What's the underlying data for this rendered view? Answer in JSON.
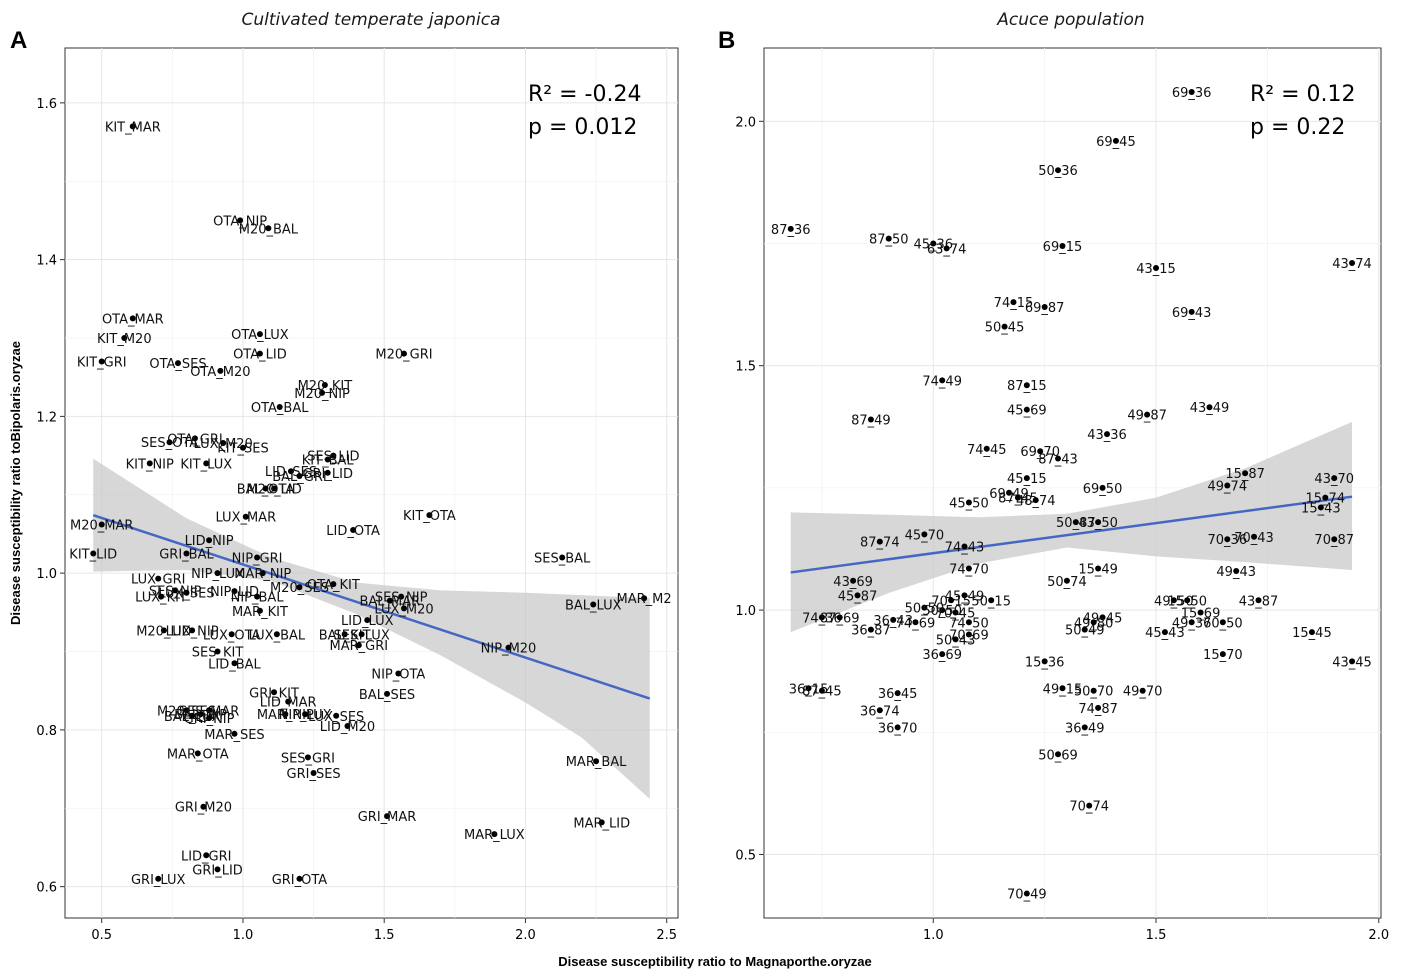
{
  "chart_data": [
    {
      "type": "scatter",
      "panel_letter": "A",
      "title": "Cultivated temperate japonica",
      "xlabel": "Disease susceptibility ratio to Magnaporthe.oryzae",
      "ylabel": "Disease susceptibility ratio toBipolaris.oryzae",
      "xlim": [
        0.37,
        2.54
      ],
      "ylim": [
        0.56,
        1.67
      ],
      "xticks": [
        "0.5",
        "1.0",
        "1.5",
        "2.0",
        "2.5"
      ],
      "xtick_values": [
        0.5,
        1.0,
        1.5,
        2.0,
        2.5
      ],
      "yticks": [
        "0.6",
        "0.8",
        "1.0",
        "1.2",
        "1.4",
        "1.6"
      ],
      "ytick_values": [
        0.6,
        0.8,
        1.0,
        1.2,
        1.4,
        1.6
      ],
      "grid": true,
      "stats": {
        "r2": "R² = -0.24",
        "p": "p   = 0.012"
      },
      "trend": {
        "x0": 0.47,
        "y0": 1.074,
        "x1": 2.44,
        "y1": 0.84
      },
      "band": {
        "x": [
          0.47,
          0.8,
          1.1,
          1.4,
          1.7,
          2.0,
          2.2,
          2.44
        ],
        "upper": [
          1.146,
          1.07,
          1.02,
          0.988,
          0.978,
          0.975,
          0.972,
          0.968
        ],
        "lower": [
          1.002,
          1.004,
          0.99,
          0.948,
          0.895,
          0.835,
          0.79,
          0.712
        ]
      },
      "points": [
        {
          "x": 0.61,
          "y": 1.57,
          "label": "KIT_MAR"
        },
        {
          "x": 0.99,
          "y": 1.45,
          "label": "OTA_NIP"
        },
        {
          "x": 1.09,
          "y": 1.44,
          "label": "M20_BAL"
        },
        {
          "x": 0.61,
          "y": 1.325,
          "label": "OTA_MAR"
        },
        {
          "x": 0.58,
          "y": 1.3,
          "label": "KIT_M20"
        },
        {
          "x": 1.06,
          "y": 1.305,
          "label": "OTA_LUX"
        },
        {
          "x": 1.06,
          "y": 1.28,
          "label": "OTA_LID"
        },
        {
          "x": 1.57,
          "y": 1.28,
          "label": "M20_GRI"
        },
        {
          "x": 0.5,
          "y": 1.27,
          "label": "KIT_GRI"
        },
        {
          "x": 0.77,
          "y": 1.268,
          "label": "OTA_SES"
        },
        {
          "x": 0.92,
          "y": 1.258,
          "label": "OTA_M20"
        },
        {
          "x": 1.29,
          "y": 1.24,
          "label": "M20_KIT"
        },
        {
          "x": 1.28,
          "y": 1.23,
          "label": "M20_NIP"
        },
        {
          "x": 1.13,
          "y": 1.212,
          "label": "OTA_BAL"
        },
        {
          "x": 0.83,
          "y": 1.172,
          "label": "OTA_GRI"
        },
        {
          "x": 0.74,
          "y": 1.167,
          "label": "SES_OTA"
        },
        {
          "x": 0.93,
          "y": 1.166,
          "label": "LUX_M20"
        },
        {
          "x": 1.0,
          "y": 1.16,
          "label": "KIT_SES"
        },
        {
          "x": 1.32,
          "y": 1.15,
          "label": "SES_LID"
        },
        {
          "x": 1.3,
          "y": 1.145,
          "label": "KIT_BAL"
        },
        {
          "x": 0.67,
          "y": 1.14,
          "label": "KIT_NIP"
        },
        {
          "x": 0.87,
          "y": 1.14,
          "label": "KIT_LUX"
        },
        {
          "x": 1.17,
          "y": 1.13,
          "label": "LID_SES"
        },
        {
          "x": 1.3,
          "y": 1.128,
          "label": "GRI_LID"
        },
        {
          "x": 1.2,
          "y": 1.124,
          "label": "BAL_GRI"
        },
        {
          "x": 1.08,
          "y": 1.108,
          "label": "BAL_OTA"
        },
        {
          "x": 1.11,
          "y": 1.108,
          "label": "M20_LID"
        },
        {
          "x": 1.66,
          "y": 1.074,
          "label": "KIT_OTA"
        },
        {
          "x": 1.01,
          "y": 1.072,
          "label": "LUX_MAR"
        },
        {
          "x": 0.5,
          "y": 1.062,
          "label": "M20_MAR"
        },
        {
          "x": 1.39,
          "y": 1.055,
          "label": "LID_OTA"
        },
        {
          "x": 0.88,
          "y": 1.042,
          "label": "LID_NIP"
        },
        {
          "x": 0.47,
          "y": 1.025,
          "label": "KIT_LID"
        },
        {
          "x": 0.8,
          "y": 1.025,
          "label": "GRI_BAL"
        },
        {
          "x": 2.13,
          "y": 1.02,
          "label": "SES_BAL"
        },
        {
          "x": 1.05,
          "y": 1.02,
          "label": "NIP_GRI"
        },
        {
          "x": 0.91,
          "y": 1.0,
          "label": "NIP_LUX"
        },
        {
          "x": 1.07,
          "y": 1.0,
          "label": "MAR_NIP"
        },
        {
          "x": 0.7,
          "y": 0.993,
          "label": "LUX_GRI"
        },
        {
          "x": 1.32,
          "y": 0.986,
          "label": "OTA_KIT"
        },
        {
          "x": 1.2,
          "y": 0.982,
          "label": "M20_SES"
        },
        {
          "x": 0.76,
          "y": 0.978,
          "label": "SES_NIP"
        },
        {
          "x": 0.97,
          "y": 0.977,
          "label": "NIP_LID"
        },
        {
          "x": 0.8,
          "y": 0.975,
          "label": "LUX_SES"
        },
        {
          "x": 0.71,
          "y": 0.97,
          "label": "LUX_KIT"
        },
        {
          "x": 1.05,
          "y": 0.97,
          "label": "NIP_BAL"
        },
        {
          "x": 1.56,
          "y": 0.97,
          "label": "SES_NIP"
        },
        {
          "x": 1.52,
          "y": 0.965,
          "label": "BAL_MAR"
        },
        {
          "x": 2.42,
          "y": 0.968,
          "label": "MAR_M2"
        },
        {
          "x": 2.24,
          "y": 0.96,
          "label": "BAL_LUX"
        },
        {
          "x": 1.57,
          "y": 0.955,
          "label": "LUX_M20"
        },
        {
          "x": 1.06,
          "y": 0.952,
          "label": "MAR_KIT"
        },
        {
          "x": 1.44,
          "y": 0.94,
          "label": "LID_LUX"
        },
        {
          "x": 0.72,
          "y": 0.927,
          "label": "M20_LID"
        },
        {
          "x": 0.82,
          "y": 0.927,
          "label": "LUX_NIP"
        },
        {
          "x": 0.96,
          "y": 0.922,
          "label": "LUX_OTA"
        },
        {
          "x": 1.12,
          "y": 0.922,
          "label": "LUX_BAL"
        },
        {
          "x": 1.36,
          "y": 0.922,
          "label": "BAL_KIT"
        },
        {
          "x": 1.42,
          "y": 0.922,
          "label": "SES_LUX"
        },
        {
          "x": 1.41,
          "y": 0.908,
          "label": "MAR_GRI"
        },
        {
          "x": 1.94,
          "y": 0.905,
          "label": "NIP_M20"
        },
        {
          "x": 0.91,
          "y": 0.9,
          "label": "SES_KIT"
        },
        {
          "x": 0.97,
          "y": 0.885,
          "label": "LID_BAL"
        },
        {
          "x": 1.55,
          "y": 0.872,
          "label": "NIP_OTA"
        },
        {
          "x": 1.11,
          "y": 0.848,
          "label": "GRI_KIT"
        },
        {
          "x": 1.51,
          "y": 0.846,
          "label": "BAL_SES"
        },
        {
          "x": 1.16,
          "y": 0.836,
          "label": "LID_MAR"
        },
        {
          "x": 0.8,
          "y": 0.825,
          "label": "M20_SES"
        },
        {
          "x": 0.88,
          "y": 0.825,
          "label": "SES_MAR"
        },
        {
          "x": 0.85,
          "y": 0.82,
          "label": "BAL_NIP"
        },
        {
          "x": 0.82,
          "y": 0.818,
          "label": "BAL_LUX"
        },
        {
          "x": 0.88,
          "y": 0.815,
          "label": "GRI_NIP"
        },
        {
          "x": 1.15,
          "y": 0.82,
          "label": "MAR_NIP"
        },
        {
          "x": 1.22,
          "y": 0.82,
          "label": "NIP_LUX"
        },
        {
          "x": 1.33,
          "y": 0.818,
          "label": "LUX_SES"
        },
        {
          "x": 1.37,
          "y": 0.805,
          "label": "LID_M20"
        },
        {
          "x": 0.97,
          "y": 0.795,
          "label": "MAR_SES"
        },
        {
          "x": 0.84,
          "y": 0.77,
          "label": "MAR_OTA"
        },
        {
          "x": 1.23,
          "y": 0.765,
          "label": "SES_GRI"
        },
        {
          "x": 1.25,
          "y": 0.745,
          "label": "GRI_SES"
        },
        {
          "x": 2.25,
          "y": 0.76,
          "label": "MAR_BAL"
        },
        {
          "x": 0.86,
          "y": 0.702,
          "label": "GRI_M20"
        },
        {
          "x": 1.51,
          "y": 0.69,
          "label": "GRI_MAR"
        },
        {
          "x": 2.27,
          "y": 0.682,
          "label": "MAR_LID"
        },
        {
          "x": 1.89,
          "y": 0.667,
          "label": "MAR_LUX"
        },
        {
          "x": 0.87,
          "y": 0.64,
          "label": "LID_GRI"
        },
        {
          "x": 0.91,
          "y": 0.622,
          "label": "GRI_LID"
        },
        {
          "x": 0.7,
          "y": 0.61,
          "label": "GRI_LUX"
        },
        {
          "x": 1.2,
          "y": 0.61,
          "label": "GRI_OTA"
        }
      ]
    },
    {
      "type": "scatter",
      "panel_letter": "B",
      "title": "Acuce population",
      "xlabel": "Disease susceptibility ratio to Magnaporthe.oryzae",
      "ylabel": "",
      "xlim": [
        0.62,
        2.005
      ],
      "ylim": [
        0.37,
        2.15
      ],
      "xticks": [
        "1.0",
        "1.5",
        "2.0"
      ],
      "xtick_values": [
        1.0,
        1.5,
        2.0
      ],
      "yticks": [
        "0.5",
        "1.0",
        "1.5",
        "2.0"
      ],
      "ytick_values": [
        0.5,
        1.0,
        1.5,
        2.0
      ],
      "grid": true,
      "stats": {
        "r2": "R² = 0.12",
        "p": "p   = 0.22"
      },
      "trend": {
        "x0": 0.68,
        "y0": 1.077,
        "x1": 1.94,
        "y1": 1.232
      },
      "band": {
        "x": [
          0.68,
          0.9,
          1.1,
          1.3,
          1.5,
          1.7,
          1.94
        ],
        "upper": [
          1.2,
          1.195,
          1.19,
          1.197,
          1.23,
          1.29,
          1.385
        ],
        "lower": [
          0.955,
          1.035,
          1.095,
          1.128,
          1.11,
          1.098,
          1.082
        ]
      },
      "points": [
        {
          "x": 1.58,
          "y": 2.06,
          "label": "69_36"
        },
        {
          "x": 1.41,
          "y": 1.96,
          "label": "69_45"
        },
        {
          "x": 1.28,
          "y": 1.9,
          "label": "50_36"
        },
        {
          "x": 0.68,
          "y": 1.78,
          "label": "87_36"
        },
        {
          "x": 0.9,
          "y": 1.76,
          "label": "87_50"
        },
        {
          "x": 1.0,
          "y": 1.75,
          "label": "45_36"
        },
        {
          "x": 1.03,
          "y": 1.74,
          "label": "63_74"
        },
        {
          "x": 1.29,
          "y": 1.745,
          "label": "69_15"
        },
        {
          "x": 1.94,
          "y": 1.71,
          "label": "43_74"
        },
        {
          "x": 1.5,
          "y": 1.7,
          "label": "43_15"
        },
        {
          "x": 1.18,
          "y": 1.63,
          "label": "74_15"
        },
        {
          "x": 1.25,
          "y": 1.62,
          "label": "69_87"
        },
        {
          "x": 1.58,
          "y": 1.61,
          "label": "69_43"
        },
        {
          "x": 1.16,
          "y": 1.58,
          "label": "50_45"
        },
        {
          "x": 1.02,
          "y": 1.47,
          "label": "74_49"
        },
        {
          "x": 1.21,
          "y": 1.46,
          "label": "87_15"
        },
        {
          "x": 0.86,
          "y": 1.39,
          "label": "87_49"
        },
        {
          "x": 1.21,
          "y": 1.41,
          "label": "45_69"
        },
        {
          "x": 1.48,
          "y": 1.4,
          "label": "49_87"
        },
        {
          "x": 1.62,
          "y": 1.415,
          "label": "43_49"
        },
        {
          "x": 1.39,
          "y": 1.36,
          "label": "43_36"
        },
        {
          "x": 1.12,
          "y": 1.33,
          "label": "74_45"
        },
        {
          "x": 1.24,
          "y": 1.325,
          "label": "69_70"
        },
        {
          "x": 1.28,
          "y": 1.31,
          "label": "87_43"
        },
        {
          "x": 1.7,
          "y": 1.28,
          "label": "15_87"
        },
        {
          "x": 1.21,
          "y": 1.27,
          "label": "45_15"
        },
        {
          "x": 1.9,
          "y": 1.27,
          "label": "43_70"
        },
        {
          "x": 1.66,
          "y": 1.255,
          "label": "49_74"
        },
        {
          "x": 1.38,
          "y": 1.25,
          "label": "69_50"
        },
        {
          "x": 1.17,
          "y": 1.24,
          "label": "69_49"
        },
        {
          "x": 1.19,
          "y": 1.23,
          "label": "87_45"
        },
        {
          "x": 1.23,
          "y": 1.225,
          "label": "48_74"
        },
        {
          "x": 1.08,
          "y": 1.22,
          "label": "45_50"
        },
        {
          "x": 1.88,
          "y": 1.23,
          "label": "15_74"
        },
        {
          "x": 1.87,
          "y": 1.21,
          "label": "15_43"
        },
        {
          "x": 1.32,
          "y": 1.18,
          "label": "50_87"
        },
        {
          "x": 1.37,
          "y": 1.18,
          "label": "43_50"
        },
        {
          "x": 0.88,
          "y": 1.14,
          "label": "87_74"
        },
        {
          "x": 0.98,
          "y": 1.155,
          "label": "45_70"
        },
        {
          "x": 1.72,
          "y": 1.15,
          "label": "70_43"
        },
        {
          "x": 1.66,
          "y": 1.145,
          "label": "70_36"
        },
        {
          "x": 1.9,
          "y": 1.145,
          "label": "70_87"
        },
        {
          "x": 1.07,
          "y": 1.13,
          "label": "74_43"
        },
        {
          "x": 1.08,
          "y": 1.085,
          "label": "74_70"
        },
        {
          "x": 1.37,
          "y": 1.085,
          "label": "15_49"
        },
        {
          "x": 1.68,
          "y": 1.08,
          "label": "49_43"
        },
        {
          "x": 0.82,
          "y": 1.06,
          "label": "43_69"
        },
        {
          "x": 1.3,
          "y": 1.06,
          "label": "50_74"
        },
        {
          "x": 0.83,
          "y": 1.03,
          "label": "45_87"
        },
        {
          "x": 1.07,
          "y": 1.03,
          "label": "45_49"
        },
        {
          "x": 1.04,
          "y": 1.02,
          "label": "70_15"
        },
        {
          "x": 1.13,
          "y": 1.02,
          "label": "50_15"
        },
        {
          "x": 1.54,
          "y": 1.02,
          "label": "49_50"
        },
        {
          "x": 1.57,
          "y": 1.02,
          "label": "15_50"
        },
        {
          "x": 1.73,
          "y": 1.02,
          "label": "43_87"
        },
        {
          "x": 0.98,
          "y": 1.005,
          "label": "50_50"
        },
        {
          "x": 1.02,
          "y": 1.0,
          "label": "50_50"
        },
        {
          "x": 1.05,
          "y": 0.995,
          "label": "70_45"
        },
        {
          "x": 1.6,
          "y": 0.995,
          "label": "15_69"
        },
        {
          "x": 0.75,
          "y": 0.985,
          "label": "74_36"
        },
        {
          "x": 0.79,
          "y": 0.985,
          "label": "87_69"
        },
        {
          "x": 0.91,
          "y": 0.98,
          "label": "36_43"
        },
        {
          "x": 0.96,
          "y": 0.975,
          "label": "74_69"
        },
        {
          "x": 1.38,
          "y": 0.985,
          "label": "49_45"
        },
        {
          "x": 1.36,
          "y": 0.975,
          "label": "49_80"
        },
        {
          "x": 1.08,
          "y": 0.975,
          "label": "74_50"
        },
        {
          "x": 1.58,
          "y": 0.975,
          "label": "49_36"
        },
        {
          "x": 1.65,
          "y": 0.975,
          "label": "70_50"
        },
        {
          "x": 1.34,
          "y": 0.96,
          "label": "50_49"
        },
        {
          "x": 0.86,
          "y": 0.96,
          "label": "36_87"
        },
        {
          "x": 1.08,
          "y": 0.95,
          "label": "70_69"
        },
        {
          "x": 1.52,
          "y": 0.955,
          "label": "45_43"
        },
        {
          "x": 1.05,
          "y": 0.94,
          "label": "50_43"
        },
        {
          "x": 1.85,
          "y": 0.955,
          "label": "15_45"
        },
        {
          "x": 1.02,
          "y": 0.91,
          "label": "36_69"
        },
        {
          "x": 1.65,
          "y": 0.91,
          "label": "15_70"
        },
        {
          "x": 1.25,
          "y": 0.895,
          "label": "15_36"
        },
        {
          "x": 1.94,
          "y": 0.895,
          "label": "43_45"
        },
        {
          "x": 0.72,
          "y": 0.84,
          "label": "36_15"
        },
        {
          "x": 0.75,
          "y": 0.835,
          "label": "87_45"
        },
        {
          "x": 0.92,
          "y": 0.83,
          "label": "36_45"
        },
        {
          "x": 1.29,
          "y": 0.84,
          "label": "49_15"
        },
        {
          "x": 1.36,
          "y": 0.835,
          "label": "50_70"
        },
        {
          "x": 1.47,
          "y": 0.835,
          "label": "49_70"
        },
        {
          "x": 0.88,
          "y": 0.795,
          "label": "36_74"
        },
        {
          "x": 1.37,
          "y": 0.8,
          "label": "74_87"
        },
        {
          "x": 0.92,
          "y": 0.76,
          "label": "36_70"
        },
        {
          "x": 1.34,
          "y": 0.76,
          "label": "36_49"
        },
        {
          "x": 1.28,
          "y": 0.705,
          "label": "50_69"
        },
        {
          "x": 1.35,
          "y": 0.6,
          "label": "70_74"
        },
        {
          "x": 1.21,
          "y": 0.42,
          "label": "70_49"
        }
      ]
    }
  ]
}
